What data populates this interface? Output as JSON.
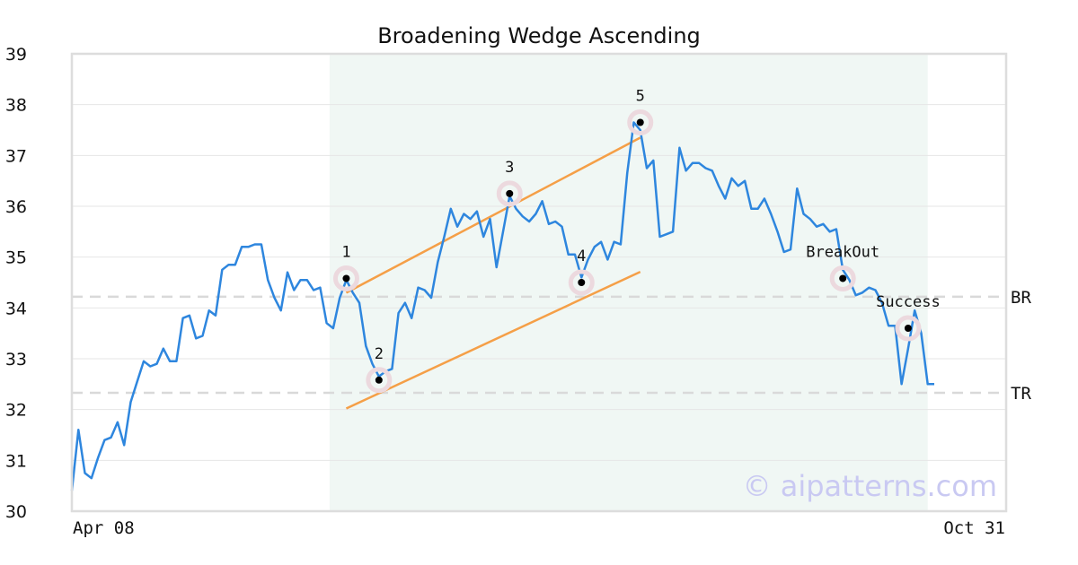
{
  "chart_data": {
    "type": "line",
    "title": "Broadening Wedge Ascending",
    "ylim": [
      30,
      39
    ],
    "yticks": [
      "30",
      "31",
      "32",
      "33",
      "34",
      "35",
      "36",
      "37",
      "38",
      "39"
    ],
    "xtick_labels": [
      "Apr 08",
      "Oct 31"
    ],
    "grid": "horizontal",
    "series": [
      {
        "values": [
          30.4,
          31.6,
          30.75,
          30.65,
          31.05,
          31.4,
          31.45,
          31.75,
          31.3,
          32.15,
          32.55,
          32.95,
          32.85,
          32.9,
          33.2,
          32.95,
          32.95,
          33.8,
          33.85,
          33.4,
          33.45,
          33.95,
          33.85,
          34.75,
          34.85,
          34.85,
          35.2,
          35.2,
          35.25,
          35.25,
          34.55,
          34.2,
          33.95,
          34.7,
          34.35,
          34.55,
          34.55,
          34.35,
          34.4,
          33.7,
          33.6,
          34.2,
          34.55,
          34.3,
          34.1,
          33.25,
          32.9,
          32.65,
          32.75,
          32.8,
          33.9,
          34.1,
          33.8,
          34.4,
          34.35,
          34.2,
          34.9,
          35.4,
          35.95,
          35.6,
          35.85,
          35.75,
          35.9,
          35.4,
          35.75,
          34.8,
          35.5,
          36.2,
          35.95,
          35.8,
          35.7,
          35.85,
          36.1,
          35.65,
          35.7,
          35.6,
          35.05,
          35.05,
          34.6,
          34.95,
          35.2,
          35.3,
          34.95,
          35.3,
          35.25,
          36.65,
          37.65,
          37.5,
          36.75,
          36.9,
          35.4,
          35.45,
          35.5,
          37.15,
          36.7,
          36.85,
          36.85,
          36.75,
          36.7,
          36.4,
          36.15,
          36.55,
          36.4,
          36.5,
          35.95,
          35.95,
          36.15,
          35.85,
          35.5,
          35.1,
          35.15,
          36.35,
          35.85,
          35.75,
          35.6,
          35.65,
          35.5,
          35.55,
          34.75,
          34.55,
          34.25,
          34.3,
          34.4,
          34.35,
          34.1,
          33.65,
          33.65,
          32.5,
          33.2,
          33.95,
          33.5,
          32.5,
          32.5
        ]
      }
    ],
    "shaded_region": {
      "start_index": 40,
      "end_index": 131
    },
    "levels": [
      {
        "label": "BR",
        "value": 34.22
      },
      {
        "label": "TR",
        "value": 32.33
      }
    ],
    "trendlines": [
      {
        "from": [
          42,
          34.3
        ],
        "to": [
          87,
          37.35
        ]
      },
      {
        "from": [
          42,
          32.02
        ],
        "to": [
          87,
          34.71
        ]
      }
    ],
    "points": [
      {
        "label": "1",
        "index": 42,
        "value": 34.58
      },
      {
        "label": "2",
        "index": 47,
        "value": 32.58
      },
      {
        "label": "3",
        "index": 67,
        "value": 36.25
      },
      {
        "label": "4",
        "index": 78,
        "value": 34.5
      },
      {
        "label": "5",
        "index": 87,
        "value": 37.65
      },
      {
        "label": "BreakOut",
        "index": 118,
        "value": 34.58
      },
      {
        "label": "Success",
        "index": 128,
        "value": 33.6
      }
    ],
    "colors": {
      "line": "#2e86de",
      "trend": "#f59f47",
      "shade": "#f0f7f4",
      "level": "#d9d9d9",
      "marker_ring": "#ecd9de"
    }
  },
  "watermark": "© aipatterns.com"
}
